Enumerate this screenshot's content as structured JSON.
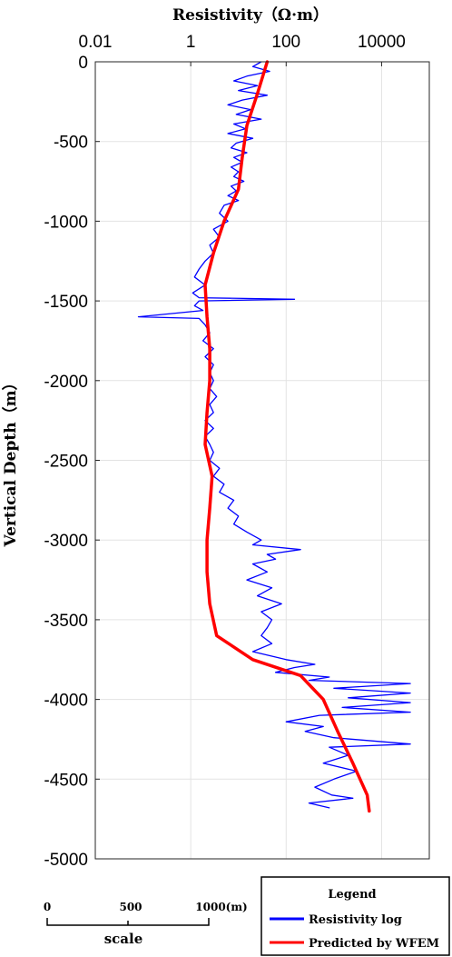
{
  "chart_data": {
    "type": "line",
    "title": "",
    "xlabel": "Resistivity（Ω·m）",
    "ylabel": "Vertical Depth（m）",
    "xscale": "log",
    "xlim": [
      0.01,
      100000
    ],
    "ylim": [
      -5000,
      0
    ],
    "x_tick_labels": [
      "0.01",
      "1",
      "100",
      "10000"
    ],
    "x_tick_values": [
      0.01,
      1,
      100,
      10000
    ],
    "y_tick_labels": [
      "0",
      "-500",
      "-1000",
      "-1500",
      "-2000",
      "-2500",
      "-3000",
      "-3500",
      "-4000",
      "-4500",
      "-5000"
    ],
    "y_tick_values": [
      0,
      -500,
      -1000,
      -1500,
      -2000,
      -2500,
      -3000,
      -3500,
      -4000,
      -4500,
      -5000
    ],
    "grid": true,
    "legend_placement": "bottom-right, outside plot",
    "legend_title": "Legend",
    "series": [
      {
        "name": "Resistivity log",
        "color": "#0000ff",
        "points": [
          [
            30,
            0
          ],
          [
            20,
            -30
          ],
          [
            45,
            -60
          ],
          [
            15,
            -90
          ],
          [
            8,
            -120
          ],
          [
            25,
            -150
          ],
          [
            10,
            -180
          ],
          [
            40,
            -210
          ],
          [
            12,
            -240
          ],
          [
            6,
            -270
          ],
          [
            18,
            -300
          ],
          [
            9,
            -330
          ],
          [
            30,
            -360
          ],
          [
            8,
            -390
          ],
          [
            14,
            -420
          ],
          [
            6,
            -450
          ],
          [
            20,
            -480
          ],
          [
            9,
            -510
          ],
          [
            7,
            -540
          ],
          [
            15,
            -570
          ],
          [
            8,
            -600
          ],
          [
            12,
            -630
          ],
          [
            7,
            -660
          ],
          [
            10,
            -690
          ],
          [
            8,
            -720
          ],
          [
            13,
            -750
          ],
          [
            7,
            -780
          ],
          [
            9,
            -810
          ],
          [
            6,
            -840
          ],
          [
            10,
            -870
          ],
          [
            5,
            -900
          ],
          [
            4,
            -950
          ],
          [
            6,
            -1000
          ],
          [
            3,
            -1050
          ],
          [
            4,
            -1100
          ],
          [
            2.5,
            -1150
          ],
          [
            3,
            -1200
          ],
          [
            2,
            -1250
          ],
          [
            1.5,
            -1300
          ],
          [
            1.2,
            -1350
          ],
          [
            2,
            -1400
          ],
          [
            1.1,
            -1450
          ],
          [
            1.5,
            -1480
          ],
          [
            150,
            -1490
          ],
          [
            1.5,
            -1500
          ],
          [
            1.2,
            -1530
          ],
          [
            1.8,
            -1560
          ],
          [
            0.08,
            -1600
          ],
          [
            1.5,
            -1610
          ],
          [
            2,
            -1650
          ],
          [
            2.5,
            -1700
          ],
          [
            1.8,
            -1750
          ],
          [
            3,
            -1800
          ],
          [
            2,
            -1850
          ],
          [
            3,
            -1900
          ],
          [
            2.5,
            -1950
          ],
          [
            3,
            -2000
          ],
          [
            2.5,
            -2050
          ],
          [
            3.5,
            -2100
          ],
          [
            2.5,
            -2150
          ],
          [
            3,
            -2200
          ],
          [
            2,
            -2250
          ],
          [
            3,
            -2300
          ],
          [
            2,
            -2350
          ],
          [
            2.5,
            -2400
          ],
          [
            3,
            -2450
          ],
          [
            2.5,
            -2500
          ],
          [
            4,
            -2550
          ],
          [
            3,
            -2600
          ],
          [
            5,
            -2650
          ],
          [
            4,
            -2700
          ],
          [
            8,
            -2750
          ],
          [
            6,
            -2800
          ],
          [
            10,
            -2850
          ],
          [
            8,
            -2900
          ],
          [
            15,
            -2950
          ],
          [
            30,
            -3000
          ],
          [
            20,
            -3030
          ],
          [
            200,
            -3060
          ],
          [
            40,
            -3090
          ],
          [
            60,
            -3120
          ],
          [
            20,
            -3150
          ],
          [
            40,
            -3200
          ],
          [
            15,
            -3250
          ],
          [
            50,
            -3300
          ],
          [
            25,
            -3350
          ],
          [
            80,
            -3400
          ],
          [
            30,
            -3450
          ],
          [
            50,
            -3500
          ],
          [
            40,
            -3550
          ],
          [
            30,
            -3600
          ],
          [
            50,
            -3650
          ],
          [
            20,
            -3700
          ],
          [
            100,
            -3750
          ],
          [
            400,
            -3780
          ],
          [
            150,
            -3800
          ],
          [
            60,
            -3830
          ],
          [
            800,
            -3860
          ],
          [
            300,
            -3880
          ],
          [
            40000,
            -3900
          ],
          [
            1000,
            -3930
          ],
          [
            40000,
            -3960
          ],
          [
            2000,
            -3990
          ],
          [
            40000,
            -4020
          ],
          [
            1500,
            -4050
          ],
          [
            40000,
            -4080
          ],
          [
            500,
            -4100
          ],
          [
            100,
            -4140
          ],
          [
            600,
            -4170
          ],
          [
            250,
            -4200
          ],
          [
            1000,
            -4240
          ],
          [
            40000,
            -4280
          ],
          [
            800,
            -4300
          ],
          [
            2000,
            -4350
          ],
          [
            600,
            -4400
          ],
          [
            3000,
            -4450
          ],
          [
            1000,
            -4500
          ],
          [
            400,
            -4550
          ],
          [
            900,
            -4600
          ],
          [
            2500,
            -4620
          ],
          [
            300,
            -4650
          ],
          [
            800,
            -4680
          ]
        ]
      },
      {
        "name": "Predicted by WFEM",
        "color": "#ff0000",
        "points": [
          [
            40,
            0
          ],
          [
            25,
            -200
          ],
          [
            15,
            -400
          ],
          [
            12,
            -600
          ],
          [
            10,
            -800
          ],
          [
            5,
            -1000
          ],
          [
            3,
            -1200
          ],
          [
            2,
            -1400
          ],
          [
            2.2,
            -1600
          ],
          [
            2.5,
            -1800
          ],
          [
            2.5,
            -2000
          ],
          [
            2.2,
            -2200
          ],
          [
            2.0,
            -2400
          ],
          [
            2.8,
            -2600
          ],
          [
            2.5,
            -2800
          ],
          [
            2.2,
            -3000
          ],
          [
            2.2,
            -3200
          ],
          [
            2.5,
            -3400
          ],
          [
            3.5,
            -3600
          ],
          [
            20,
            -3750
          ],
          [
            200,
            -3850
          ],
          [
            600,
            -4000
          ],
          [
            1200,
            -4200
          ],
          [
            2500,
            -4400
          ],
          [
            5000,
            -4600
          ],
          [
            5500,
            -4700
          ]
        ]
      }
    ]
  },
  "scale_bar": {
    "labels": [
      "0",
      "500",
      "1000(m)"
    ],
    "title": "scale"
  }
}
